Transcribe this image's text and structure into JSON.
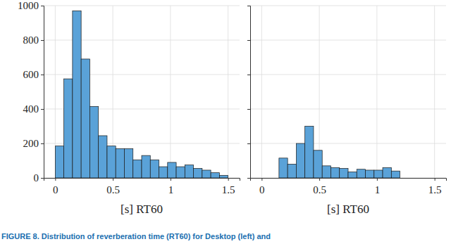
{
  "chart_data": [
    {
      "type": "histogram",
      "x_label": "[s] RT60",
      "bins": [
        0,
        0.075,
        0.15,
        0.225,
        0.3,
        0.375,
        0.45,
        0.525,
        0.6,
        0.675,
        0.75,
        0.825,
        0.9,
        0.975,
        1.05,
        1.125,
        1.2,
        1.275,
        1.35,
        1.425,
        1.5
      ],
      "counts": [
        185,
        575,
        970,
        690,
        415,
        245,
        185,
        170,
        170,
        105,
        130,
        105,
        65,
        90,
        65,
        75,
        55,
        45,
        30,
        15
      ],
      "color": "#5aa2d8",
      "xlim": [
        -0.1,
        1.6
      ],
      "xticks": [
        0,
        0.5,
        1,
        1.5
      ],
      "ylim": [
        0,
        1000
      ],
      "yticks": [
        0,
        200,
        400,
        600,
        800,
        1000
      ],
      "grid": true
    },
    {
      "type": "histogram",
      "x_label": "[s] RT60",
      "bins": [
        0.15,
        0.225,
        0.3,
        0.375,
        0.45,
        0.525,
        0.6,
        0.675,
        0.75,
        0.825,
        0.9,
        0.975,
        1.05,
        1.125,
        1.2
      ],
      "counts": [
        115,
        80,
        200,
        300,
        160,
        70,
        60,
        55,
        35,
        50,
        45,
        45,
        60,
        40
      ],
      "color": "#5aa2d8",
      "xlim": [
        -0.1,
        1.6
      ],
      "xticks": [
        0,
        0.5,
        1,
        1.5
      ],
      "ylim": [
        0,
        1000
      ],
      "yticks": [
        0,
        200,
        400,
        600,
        800,
        1000
      ],
      "grid": true,
      "tick_labels": "x"
    }
  ],
  "caption": "FIGURE 8. Distribution of reverberation time (RT60) for Desktop (left) and"
}
